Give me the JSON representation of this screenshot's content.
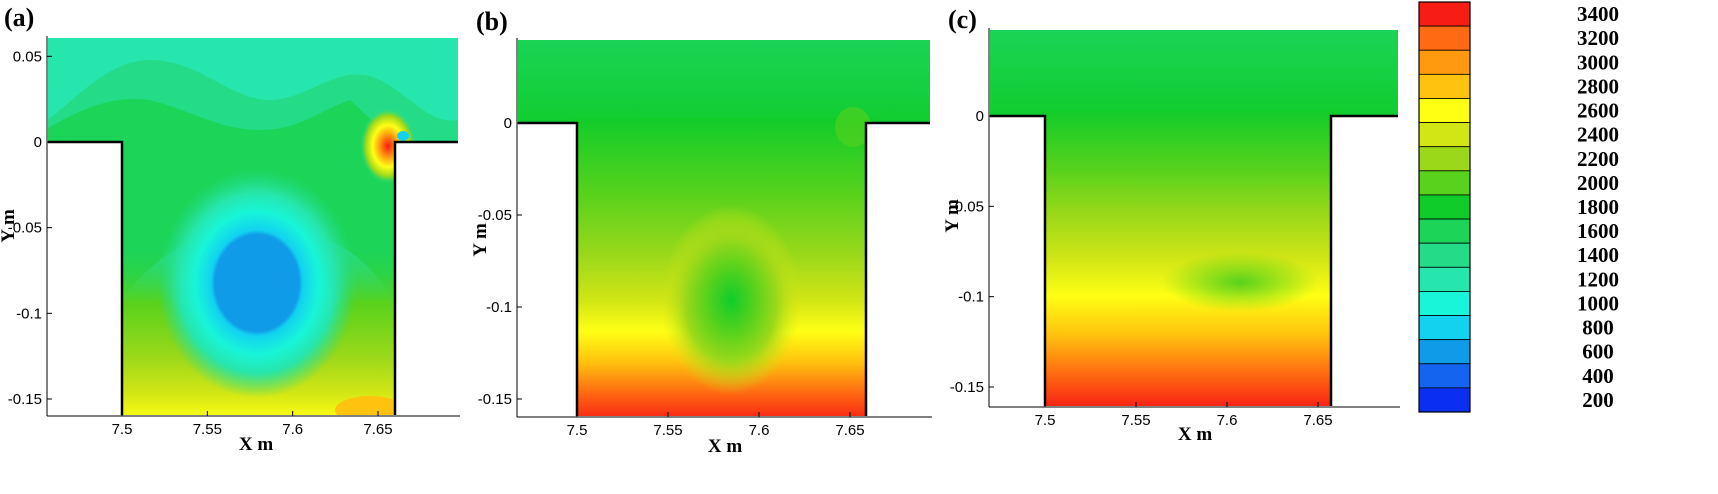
{
  "chart_data": {
    "type": "heatmap",
    "quantity_units": "",
    "legend": {
      "placement": "right",
      "levels": [
        200,
        400,
        600,
        800,
        1000,
        1200,
        1400,
        1600,
        1800,
        2000,
        2200,
        2400,
        2600,
        2800,
        3000,
        3200,
        3400
      ],
      "labels": [
        "3400",
        "3200",
        "3000",
        "2800",
        "2600",
        "2400",
        "2200",
        "2000",
        "1800",
        "1600",
        "1400",
        "1200",
        "1000",
        "800",
        "600",
        "400",
        "200"
      ],
      "colors": [
        "#0a2ff0",
        "#1464f0",
        "#0f9be8",
        "#12d2f0",
        "#18f5d8",
        "#26e6ad",
        "#24dc88",
        "#1bd458",
        "#10cc2a",
        "#58d21c",
        "#9bd81a",
        "#d2e615",
        "#ffff14",
        "#ffc20e",
        "#ff9a10",
        "#ff6a12",
        "#f71c14"
      ]
    },
    "panels": [
      {
        "label": "(a)",
        "xlabel": "X m",
        "ylabel": "Y m",
        "xlim": [
          7.47,
          7.69
        ],
        "ylim": [
          -0.16,
          0.06
        ],
        "xticks": [
          7.5,
          7.55,
          7.6,
          7.65
        ],
        "xtick_labels": [
          "7.5",
          "7.55",
          "7.6",
          "7.65"
        ],
        "yticks": [
          0.05,
          0,
          -0.05,
          -0.1,
          -0.15
        ],
        "ytick_labels": [
          "0.05",
          "0",
          "-0.05",
          "-0.1",
          "-0.15"
        ],
        "cavity_x": [
          7.5,
          7.66
        ],
        "cavity_top": 0
      },
      {
        "label": "(b)",
        "xlabel": "X m",
        "ylabel": "Y m",
        "xlim": [
          7.47,
          7.69
        ],
        "ylim": [
          -0.16,
          0.05
        ],
        "xticks": [
          7.5,
          7.55,
          7.6,
          7.65
        ],
        "xtick_labels": [
          "7.5",
          "7.55",
          "7.6",
          "7.65"
        ],
        "yticks": [
          0,
          -0.05,
          -0.1,
          -0.15
        ],
        "ytick_labels": [
          "0",
          "-0.05",
          "-0.1",
          "-0.15"
        ],
        "cavity_x": [
          7.5,
          7.66
        ],
        "cavity_top": 0
      },
      {
        "label": "(c)",
        "xlabel": "X m",
        "ylabel": "Y m",
        "xlim": [
          7.47,
          7.69
        ],
        "ylim": [
          -0.16,
          0.05
        ],
        "xticks": [
          7.5,
          7.55,
          7.6,
          7.65
        ],
        "xtick_labels": [
          "7.5",
          "7.55",
          "7.6",
          "7.65"
        ],
        "yticks": [
          0,
          -0.05,
          -0.1,
          -0.15
        ],
        "ytick_labels": [
          "0",
          "-0.05",
          "-0.1",
          "-0.15"
        ],
        "cavity_x": [
          7.5,
          7.66
        ],
        "cavity_top": 0
      }
    ]
  }
}
